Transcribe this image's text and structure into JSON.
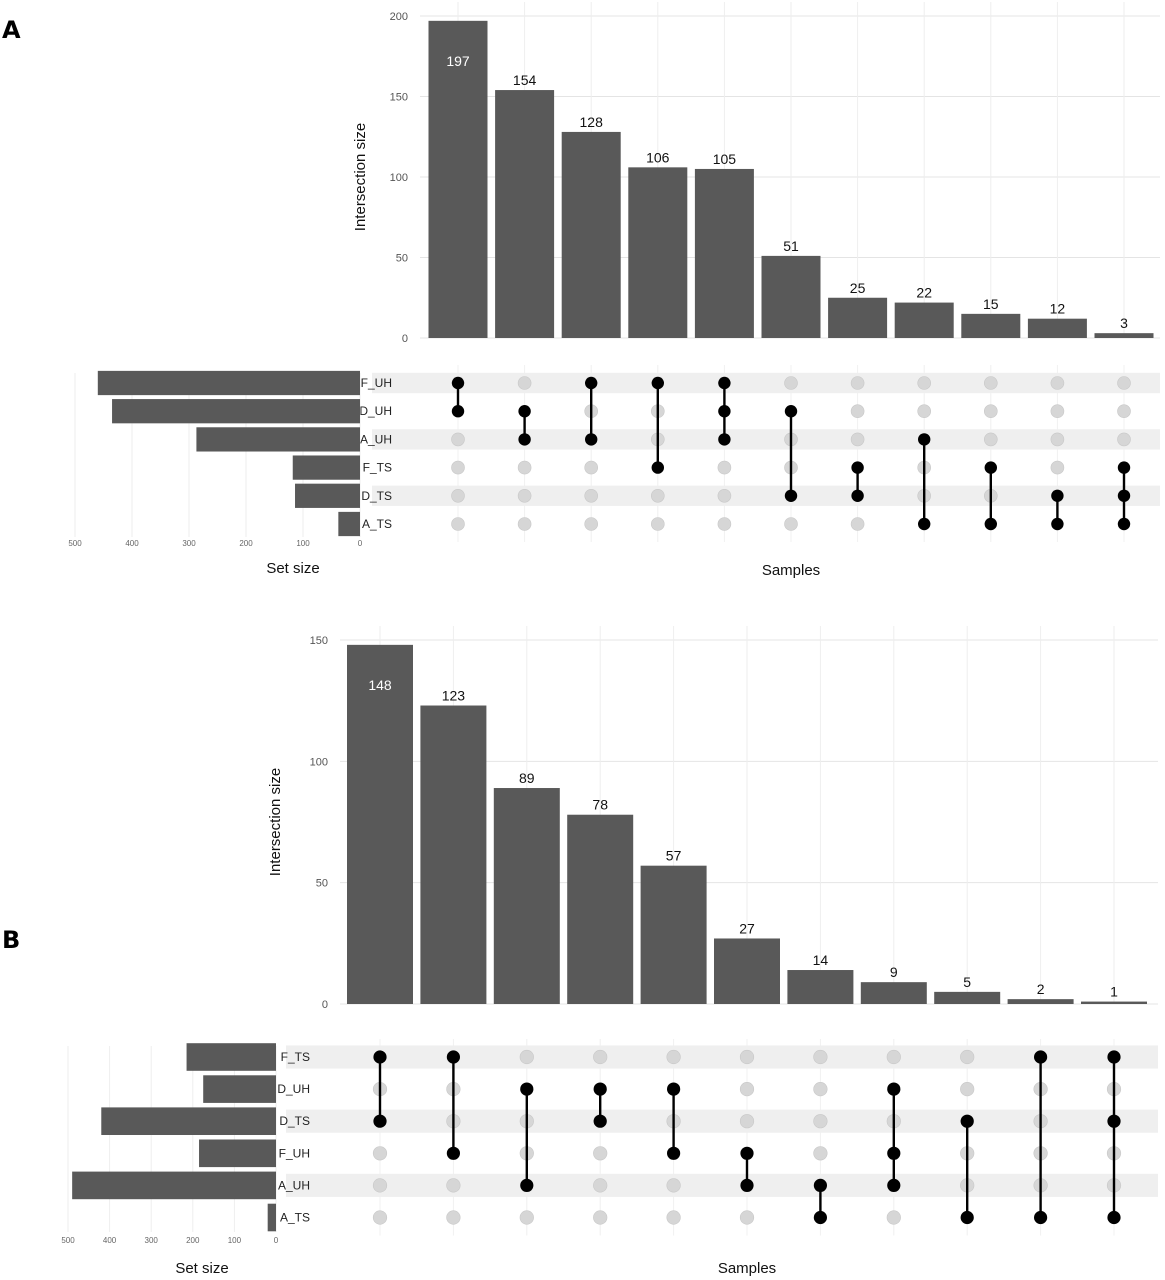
{
  "chart_data": [
    {
      "type": "upset",
      "panel": "A",
      "ylabel": "Intersection size",
      "xlabel": "Samples",
      "set_size_label": "Set size",
      "ylim": [
        0,
        200
      ],
      "yticks": [
        0,
        50,
        100,
        150,
        200
      ],
      "sets": [
        "F_UH",
        "D_UH",
        "A_UH",
        "F_TS",
        "D_TS",
        "A_TS"
      ],
      "set_sizes": [
        460,
        435,
        287,
        118,
        114,
        38
      ],
      "set_size_ticks": [
        500,
        400,
        300,
        200,
        100,
        0
      ],
      "set_size_max": 500,
      "intersections": [
        {
          "sets": [
            "F_UH",
            "D_UH"
          ],
          "size": 197
        },
        {
          "sets": [
            "D_UH",
            "A_UH"
          ],
          "size": 154
        },
        {
          "sets": [
            "F_UH",
            "A_UH"
          ],
          "size": 128
        },
        {
          "sets": [
            "F_UH",
            "F_TS"
          ],
          "size": 106
        },
        {
          "sets": [
            "F_UH",
            "D_UH",
            "A_UH"
          ],
          "size": 105
        },
        {
          "sets": [
            "D_UH",
            "D_TS"
          ],
          "size": 51
        },
        {
          "sets": [
            "F_TS",
            "D_TS"
          ],
          "size": 25
        },
        {
          "sets": [
            "A_UH",
            "A_TS"
          ],
          "size": 22
        },
        {
          "sets": [
            "F_TS",
            "A_TS"
          ],
          "size": 15
        },
        {
          "sets": [
            "D_TS",
            "A_TS"
          ],
          "size": 12
        },
        {
          "sets": [
            "F_TS",
            "D_TS",
            "A_TS"
          ],
          "size": 3
        }
      ]
    },
    {
      "type": "upset",
      "panel": "B",
      "ylabel": "Intersection size",
      "xlabel": "Samples",
      "set_size_label": "Set size",
      "ylim": [
        0,
        150
      ],
      "yticks": [
        0,
        50,
        100,
        150
      ],
      "sets": [
        "F_TS",
        "D_UH",
        "D_TS",
        "F_UH",
        "A_UH",
        "A_TS"
      ],
      "set_sizes": [
        215,
        175,
        420,
        185,
        490,
        20
      ],
      "set_size_ticks": [
        500,
        400,
        300,
        200,
        100,
        0
      ],
      "set_size_max": 500,
      "intersections": [
        {
          "sets": [
            "F_TS",
            "D_TS"
          ],
          "size": 148
        },
        {
          "sets": [
            "F_TS",
            "F_UH"
          ],
          "size": 123
        },
        {
          "sets": [
            "D_UH",
            "A_UH"
          ],
          "size": 89
        },
        {
          "sets": [
            "D_UH",
            "D_TS"
          ],
          "size": 78
        },
        {
          "sets": [
            "D_UH",
            "F_UH"
          ],
          "size": 57
        },
        {
          "sets": [
            "F_UH",
            "A_UH"
          ],
          "size": 27
        },
        {
          "sets": [
            "A_UH",
            "A_TS"
          ],
          "size": 14
        },
        {
          "sets": [
            "D_UH",
            "F_UH",
            "A_UH"
          ],
          "size": 9
        },
        {
          "sets": [
            "D_TS",
            "A_TS"
          ],
          "size": 5
        },
        {
          "sets": [
            "F_TS",
            "A_TS"
          ],
          "size": 2
        },
        {
          "sets": [
            "F_TS",
            "D_TS",
            "A_TS"
          ],
          "size": 1
        }
      ]
    }
  ]
}
